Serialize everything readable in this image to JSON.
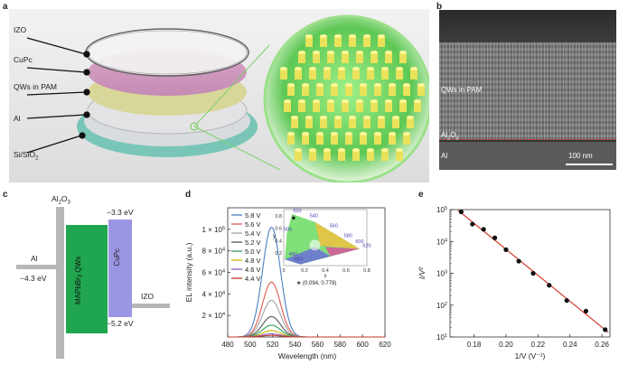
{
  "panels": {
    "a": "a",
    "b": "b",
    "c": "c",
    "d": "d",
    "e": "e"
  },
  "panel_a": {
    "layers": [
      "IZO",
      "CuPc",
      "QWs in PAM",
      "Al",
      "Si/SiO"
    ],
    "si_sub": "2"
  },
  "panel_b": {
    "labels": {
      "qws": "QWs in PAM",
      "al2o3": "Al",
      "al2o3_sub": "2",
      "al2o3_o": "O",
      "al2o3_sub2": "3",
      "al": "Al"
    },
    "scalebar": "100 nm"
  },
  "panel_c": {
    "al2o3_top": {
      "a": "Al",
      "s1": "2",
      "b": "O",
      "s2": "3"
    },
    "al_label": "Al",
    "al_energy": "−4.3 eV",
    "qws_label": {
      "a": "MAPbBr",
      "s": "3",
      "b": "QWs"
    },
    "cupc_label": "CuPc",
    "cupc_top": "−3.3 eV",
    "cupc_bottom": "−5.2 eV",
    "izo_label": "IZO",
    "colors": {
      "al2o3": "#b7b7b7",
      "qws": "#1fa64f",
      "cupc": "#9b96e3",
      "al": "#b7b7b7",
      "izo": "#b7b7b7"
    }
  },
  "chart_data": [
    {
      "type": "line",
      "ylabel": "EL intensity (a.u.)",
      "xlabel": "Wavelength (nm)",
      "xlim": [
        480,
        620
      ],
      "ylim": [
        0,
        120000
      ],
      "xticks": [
        "480",
        "500",
        "520",
        "540",
        "560",
        "580",
        "600",
        "620"
      ],
      "yticks": [
        {
          "v": 20000,
          "m": "2",
          "e": "4"
        },
        {
          "v": 40000,
          "m": "4",
          "e": "4"
        },
        {
          "v": 60000,
          "m": "6",
          "e": "4"
        },
        {
          "v": 80000,
          "m": "8",
          "e": "4"
        },
        {
          "v": 100000,
          "m": "1",
          "e": "5"
        }
      ],
      "peak_x": 519,
      "width": 8,
      "legend_placement": "top-left",
      "series": [
        {
          "name": "5.8 V",
          "peak": 102000,
          "color": "#4a7fc1"
        },
        {
          "name": "5.6 V",
          "peak": 51000,
          "color": "#e05a4f"
        },
        {
          "name": "5.4 V",
          "peak": 34000,
          "color": "#a3a3a3"
        },
        {
          "name": "5.2 V",
          "peak": 19000,
          "color": "#555555"
        },
        {
          "name": "5.0 V",
          "peak": 11000,
          "color": "#2e9b5f"
        },
        {
          "name": "4.8 V",
          "peak": 6000,
          "color": "#c9b400"
        },
        {
          "name": "4.6 V",
          "peak": 3000,
          "color": "#8a5ac2"
        },
        {
          "name": "4.4 V",
          "peak": 1500,
          "color": "#c0392b"
        }
      ],
      "inset": {
        "xlabel": "x",
        "ylabel": "y",
        "xticks": [
          "0",
          "0.2",
          "0.4",
          "0.6",
          "0.8"
        ],
        "yticks": [
          "0.2",
          "0.4",
          "0.6",
          "0.8"
        ],
        "wavelength_labels": [
          "520",
          "540",
          "560",
          "580",
          "600",
          "620",
          "500",
          "480",
          "490"
        ],
        "point": [
          0.094,
          0.778
        ],
        "point_label": "★ (0.094, 0.778)"
      }
    },
    {
      "type": "scatter",
      "xlabel": "1/V (V⁻¹)",
      "ylabel": "I/V²",
      "xlim": [
        0.165,
        0.265
      ],
      "ylim_log10": [
        1,
        5
      ],
      "xticks": [
        "0.18",
        "0.20",
        "0.22",
        "0.24",
        "0.26"
      ],
      "yticks": [
        {
          "m": "10",
          "e": "1"
        },
        {
          "m": "10",
          "e": "2"
        },
        {
          "m": "10",
          "e": "3"
        },
        {
          "m": "10",
          "e": "4"
        },
        {
          "m": "10",
          "e": "5"
        }
      ],
      "x": [
        0.172,
        0.179,
        0.186,
        0.193,
        0.2,
        0.208,
        0.217,
        0.227,
        0.238,
        0.25,
        0.262
      ],
      "y": [
        85000,
        35000,
        24000,
        13000,
        5500,
        2400,
        1000,
        420,
        140,
        65,
        17
      ],
      "fit_color": "#d23a2a"
    }
  ]
}
